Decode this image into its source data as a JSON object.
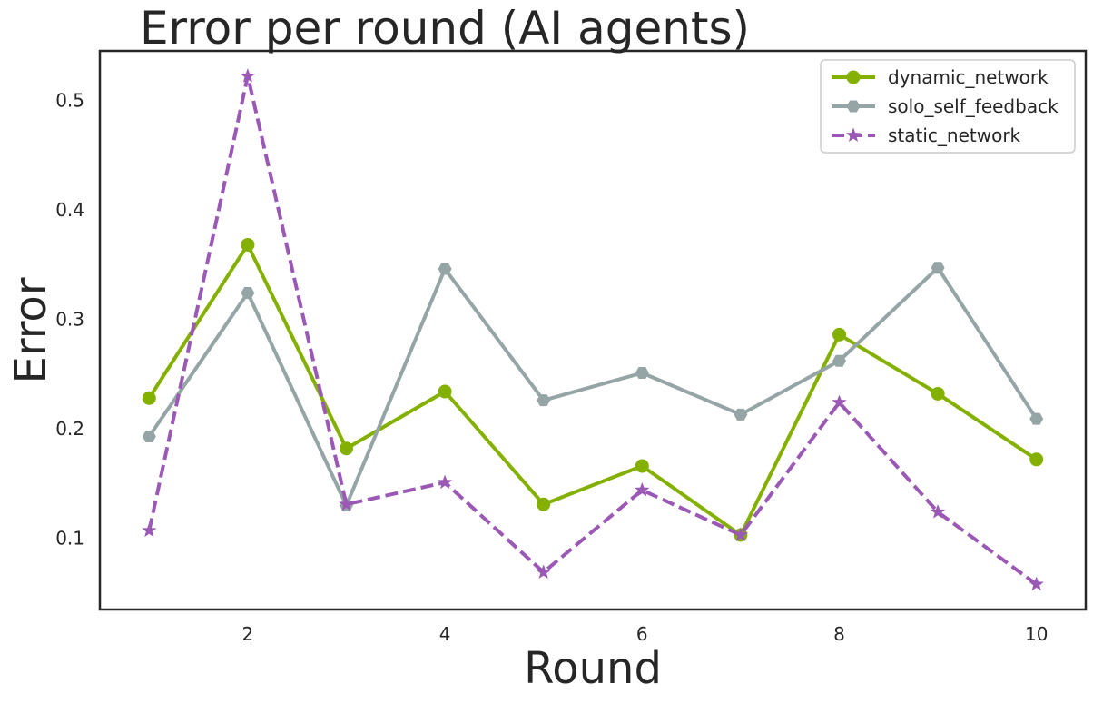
{
  "chart_data": {
    "type": "line",
    "title": "Error per round (AI agents)",
    "xlabel": "Round",
    "ylabel": "Error",
    "x": [
      1,
      2,
      3,
      4,
      5,
      6,
      7,
      8,
      9,
      10
    ],
    "xlim": [
      0.5,
      10.5
    ],
    "ylim": [
      0.035,
      0.545
    ],
    "xticks": [
      2,
      4,
      6,
      8,
      10
    ],
    "yticks": [
      0.1,
      0.2,
      0.3,
      0.4,
      0.5
    ],
    "grid": false,
    "legend_position": "top-right",
    "series": [
      {
        "name": "dynamic_network",
        "color": "#84b000",
        "marker": "circle",
        "line_style": "solid",
        "values": [
          0.228,
          0.368,
          0.182,
          0.234,
          0.131,
          0.166,
          0.103,
          0.286,
          0.232,
          0.172
        ]
      },
      {
        "name": "solo_self_feedback",
        "color": "#95a5a6",
        "marker": "hexagon",
        "line_style": "solid",
        "values": [
          0.193,
          0.324,
          0.13,
          0.346,
          0.226,
          0.251,
          0.213,
          0.262,
          0.347,
          0.209
        ]
      },
      {
        "name": "static_network",
        "color": "#9b59b6",
        "marker": "star",
        "line_style": "dashed",
        "values": [
          0.107,
          0.522,
          0.131,
          0.151,
          0.069,
          0.144,
          0.103,
          0.224,
          0.124,
          0.058
        ]
      }
    ]
  }
}
